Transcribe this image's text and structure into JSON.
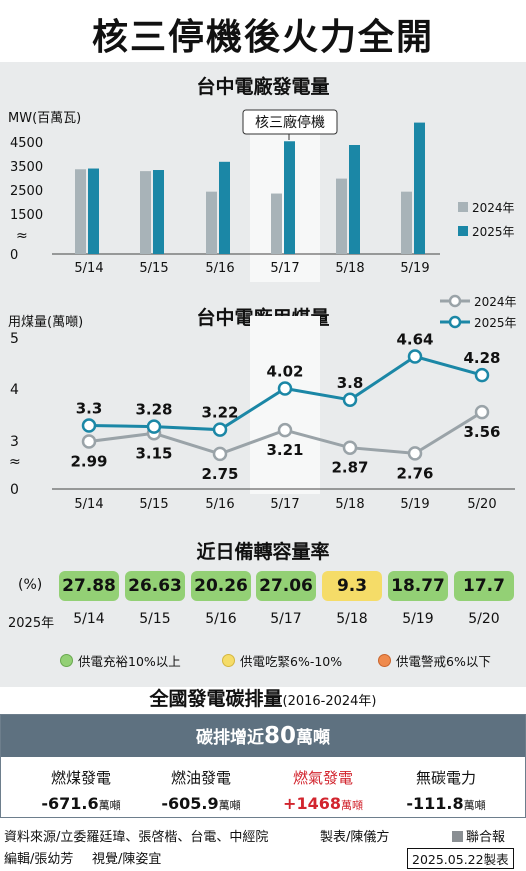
{
  "title": "核三停機後火力全開",
  "colors": {
    "y2024": "#a8b3b8",
    "y2025": "#1b87a6",
    "panel": "#e9ebec",
    "green": "#93d075",
    "yellow": "#f5dc68",
    "banner": "#5e7180",
    "red": "#d2252e"
  },
  "chart_data": [
    {
      "type": "bar",
      "title": "台中電廠發電量",
      "ylabel": "MW(百萬瓦)",
      "yticks": [
        "4500",
        "3500",
        "2500",
        "1500",
        "0"
      ],
      "axis_break": "≈",
      "ylim": [
        1500,
        4500
      ],
      "categories": [
        "5/14",
        "5/15",
        "5/16",
        "5/17",
        "5/18",
        "5/19"
      ],
      "series": [
        {
          "name": "2024年",
          "values": [
            3100,
            3050,
            2500,
            2450,
            2850,
            2500
          ]
        },
        {
          "name": "2025年",
          "values": [
            3120,
            3080,
            3300,
            3850,
            3750,
            4350
          ]
        }
      ],
      "annotation": "核三廠停機",
      "annotation_category": "5/17",
      "legend": "right"
    },
    {
      "type": "line",
      "title": "台中電廠用煤量",
      "ylabel": "用煤量(萬噸)",
      "yticks": [
        "5",
        "4",
        "3",
        "0"
      ],
      "axis_break": "≈",
      "ylim": [
        2,
        5
      ],
      "x": [
        "5/14",
        "5/15",
        "5/16",
        "5/17",
        "5/18",
        "5/19",
        "5/20"
      ],
      "series": [
        {
          "name": "2024年",
          "values": [
            2.99,
            3.15,
            2.75,
            3.21,
            2.87,
            2.76,
            3.56
          ],
          "labels": [
            "2.99",
            "3.15",
            "2.75",
            "3.21",
            "2.87",
            "2.76",
            "3.56"
          ]
        },
        {
          "name": "2025年",
          "values": [
            3.3,
            3.28,
            3.22,
            4.02,
            3.8,
            4.64,
            4.28
          ],
          "labels": [
            "3.3",
            "3.28",
            "3.22",
            "4.02",
            "3.8",
            "4.64",
            "4.28"
          ]
        }
      ],
      "legend": "top-right"
    },
    {
      "type": "table",
      "title": "近日備轉容量率",
      "unit": "(%)",
      "row_label": "2025年",
      "columns": [
        "5/14",
        "5/15",
        "5/16",
        "5/17",
        "5/18",
        "5/19",
        "5/20"
      ],
      "values": [
        "27.88",
        "26.63",
        "20.26",
        "27.06",
        "9.3",
        "18.77",
        "17.7"
      ],
      "status": [
        "green",
        "green",
        "green",
        "green",
        "yellow",
        "green",
        "green"
      ],
      "legend": [
        "供電充裕10%以上",
        "供電吃緊6%-10%",
        "供電警戒6%以下"
      ]
    }
  ],
  "carbon": {
    "title": "全國發電碳排量",
    "period": "(2016-2024年)",
    "banner_prefix": "碳排增近",
    "banner_number": "80",
    "banner_suffix": "萬噸",
    "items": [
      {
        "label": "燃煤發電",
        "value": "-671.6",
        "unit": "萬噸"
      },
      {
        "label": "燃油發電",
        "value": "-605.9",
        "unit": "萬噸"
      },
      {
        "label": "燃氣發電",
        "value": "+1468",
        "unit": "萬噸"
      },
      {
        "label": "無碳電力",
        "value": "-111.8",
        "unit": "萬噸"
      }
    ]
  },
  "footer": {
    "source": "資料來源/立委羅廷瑋、張啓楷、台電、中經院",
    "made_by": "製表/陳儀方",
    "editor": "編輯/張幼芳",
    "visual": "視覺/陳姿宜",
    "publisher": "聯合報",
    "date": "2025.05.22製表"
  }
}
